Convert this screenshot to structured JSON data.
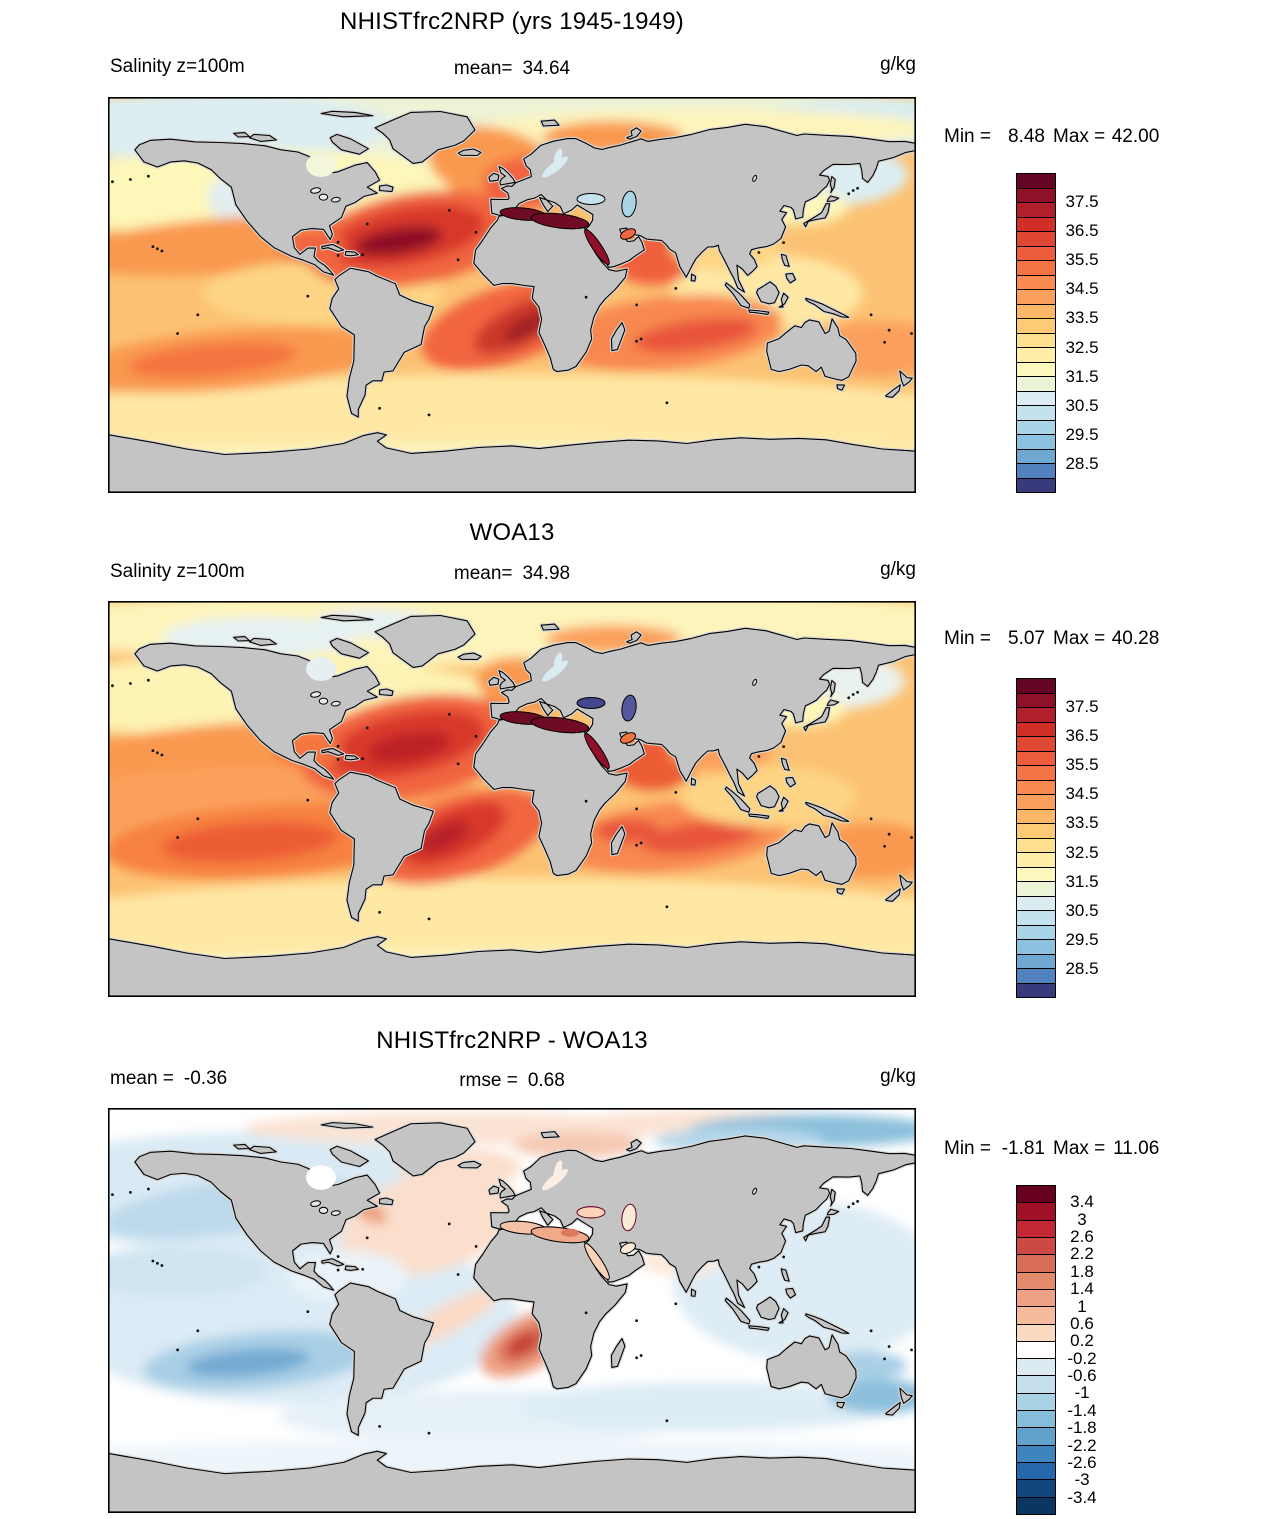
{
  "figure": {
    "background": "#ffffff",
    "land_color": "#c4c4c4",
    "coast_color": "#000000"
  },
  "panels": [
    {
      "id": "model",
      "title": "NHISTfrc2NRP (yrs 1945-1949)",
      "row": {
        "left_label": "Salinity z=100m",
        "left_value": "",
        "center_label": "mean=",
        "center_value": "34.64",
        "units": "g/kg"
      },
      "minmax": {
        "min_label": "Min =",
        "min_value": "8.48",
        "max_label": "Max =",
        "max_value": "42.00"
      },
      "colorbar": {
        "cells": 22,
        "cells_per_label": 2,
        "tick_labels": [
          "37.5",
          "36.5",
          "35.5",
          "34.5",
          "33.5",
          "32.5",
          "31.5",
          "30.5",
          "29.5",
          "28.5"
        ],
        "colors": [
          "#650423",
          "#8e1127",
          "#b01f2b",
          "#d02f27",
          "#e04732",
          "#ee5d3b",
          "#f47446",
          "#f98a51",
          "#fba05c",
          "#fdb768",
          "#fdcb76",
          "#fedf8f",
          "#feeea7",
          "#fdf8bd",
          "#ecf4d8",
          "#dbedf2",
          "#c4e1ee",
          "#a9d4e8",
          "#8cc2df",
          "#6ea8d0",
          "#5182be",
          "#383a7c"
        ]
      }
    },
    {
      "id": "woa13",
      "title": "WOA13",
      "row": {
        "left_label": "Salinity z=100m",
        "left_value": "",
        "center_label": "mean=",
        "center_value": "34.98",
        "units": "g/kg"
      },
      "minmax": {
        "min_label": "Min =",
        "min_value": "5.07",
        "max_label": "Max =",
        "max_value": "40.28"
      },
      "colorbar": {
        "cells": 22,
        "cells_per_label": 2,
        "tick_labels": [
          "37.5",
          "36.5",
          "35.5",
          "34.5",
          "33.5",
          "32.5",
          "31.5",
          "30.5",
          "29.5",
          "28.5"
        ],
        "colors": [
          "#650423",
          "#8e1127",
          "#b01f2b",
          "#d02f27",
          "#e04732",
          "#ee5d3b",
          "#f47446",
          "#f98a51",
          "#fba05c",
          "#fdb768",
          "#fdcb76",
          "#fedf8f",
          "#feeea7",
          "#fdf8bd",
          "#ecf4d8",
          "#dbedf2",
          "#c4e1ee",
          "#a9d4e8",
          "#8cc2df",
          "#6ea8d0",
          "#5182be",
          "#383a7c"
        ]
      }
    },
    {
      "id": "difference",
      "title": "NHISTfrc2NRP - WOA13",
      "row": {
        "left_label": "mean =",
        "left_value": "-0.36",
        "center_label": "rmse =",
        "center_value": "0.68",
        "units": "g/kg"
      },
      "minmax": {
        "min_label": "Min =",
        "min_value": "-1.81",
        "max_label": "Max =",
        "max_value": "11.06"
      },
      "colorbar": {
        "cells": 19,
        "cells_per_label": 1,
        "tick_labels": [
          "3.4",
          "3",
          "2.6",
          "2.2",
          "1.8",
          "1.4",
          "1",
          "0.6",
          "0.2",
          "-0.2",
          "-0.6",
          "-1",
          "-1.4",
          "-1.8",
          "-2.2",
          "-2.6",
          "-3",
          "-3.4"
        ],
        "colors": [
          "#67001f",
          "#9e1127",
          "#c22834",
          "#cc4a43",
          "#d96c57",
          "#e48a6d",
          "#eea184",
          "#f5bb9c",
          "#fbd9c0",
          "#ffffff",
          "#dcebf2",
          "#c6dfec",
          "#a9d2e5",
          "#86bdda",
          "#60a2cc",
          "#3e84bd",
          "#2467ad",
          "#12477e",
          "#0c3662"
        ]
      }
    }
  ],
  "chart_data": [
    {
      "type": "heatmap",
      "subtype": "filled-contour-world-map",
      "title": "NHISTfrc2NRP (yrs 1945-1949)",
      "variable": "Salinity",
      "depth": "z=100m",
      "units": "g/kg",
      "mean": 34.64,
      "min": 8.48,
      "max": 42.0,
      "contour_levels": [
        28.5,
        29.5,
        30.5,
        31.5,
        32.5,
        33.5,
        34.5,
        35.5,
        36.5,
        37.5
      ],
      "palette": [
        "#650423",
        "#8e1127",
        "#b01f2b",
        "#d02f27",
        "#e04732",
        "#ee5d3b",
        "#f47446",
        "#f98a51",
        "#fba05c",
        "#fdb768",
        "#fdcb76",
        "#fedf8f",
        "#feeea7",
        "#fdf8bd",
        "#ecf4d8",
        "#dbedf2",
        "#c4e1ee",
        "#a9d4e8",
        "#8cc2df",
        "#6ea8d0",
        "#5182be",
        "#383a7c"
      ],
      "legend_position": "right",
      "projection": "equirectangular global"
    },
    {
      "type": "heatmap",
      "subtype": "filled-contour-world-map",
      "title": "WOA13",
      "variable": "Salinity",
      "depth": "z=100m",
      "units": "g/kg",
      "mean": 34.98,
      "min": 5.07,
      "max": 40.28,
      "contour_levels": [
        28.5,
        29.5,
        30.5,
        31.5,
        32.5,
        33.5,
        34.5,
        35.5,
        36.5,
        37.5
      ],
      "palette": [
        "#650423",
        "#8e1127",
        "#b01f2b",
        "#d02f27",
        "#e04732",
        "#ee5d3b",
        "#f47446",
        "#f98a51",
        "#fba05c",
        "#fdb768",
        "#fdcb76",
        "#fedf8f",
        "#feeea7",
        "#fdf8bd",
        "#ecf4d8",
        "#dbedf2",
        "#c4e1ee",
        "#a9d4e8",
        "#8cc2df",
        "#6ea8d0",
        "#5182be",
        "#383a7c"
      ],
      "legend_position": "right",
      "projection": "equirectangular global"
    },
    {
      "type": "heatmap",
      "subtype": "filled-contour-world-map-difference",
      "title": "NHISTfrc2NRP - WOA13",
      "units": "g/kg",
      "mean": -0.36,
      "rmse": 0.68,
      "min": -1.81,
      "max": 11.06,
      "contour_levels": [
        -3.4,
        -3,
        -2.6,
        -2.2,
        -1.8,
        -1.4,
        -1,
        -0.6,
        -0.2,
        0.2,
        0.6,
        1,
        1.4,
        1.8,
        2.2,
        2.6,
        3,
        3.4
      ],
      "palette": [
        "#67001f",
        "#9e1127",
        "#c22834",
        "#cc4a43",
        "#d96c57",
        "#e48a6d",
        "#eea184",
        "#f5bb9c",
        "#fbd9c0",
        "#ffffff",
        "#dcebf2",
        "#c6dfec",
        "#a9d2e5",
        "#86bdda",
        "#60a2cc",
        "#3e84bd",
        "#2467ad",
        "#12477e",
        "#0c3662"
      ],
      "legend_position": "right",
      "projection": "equirectangular global"
    }
  ]
}
